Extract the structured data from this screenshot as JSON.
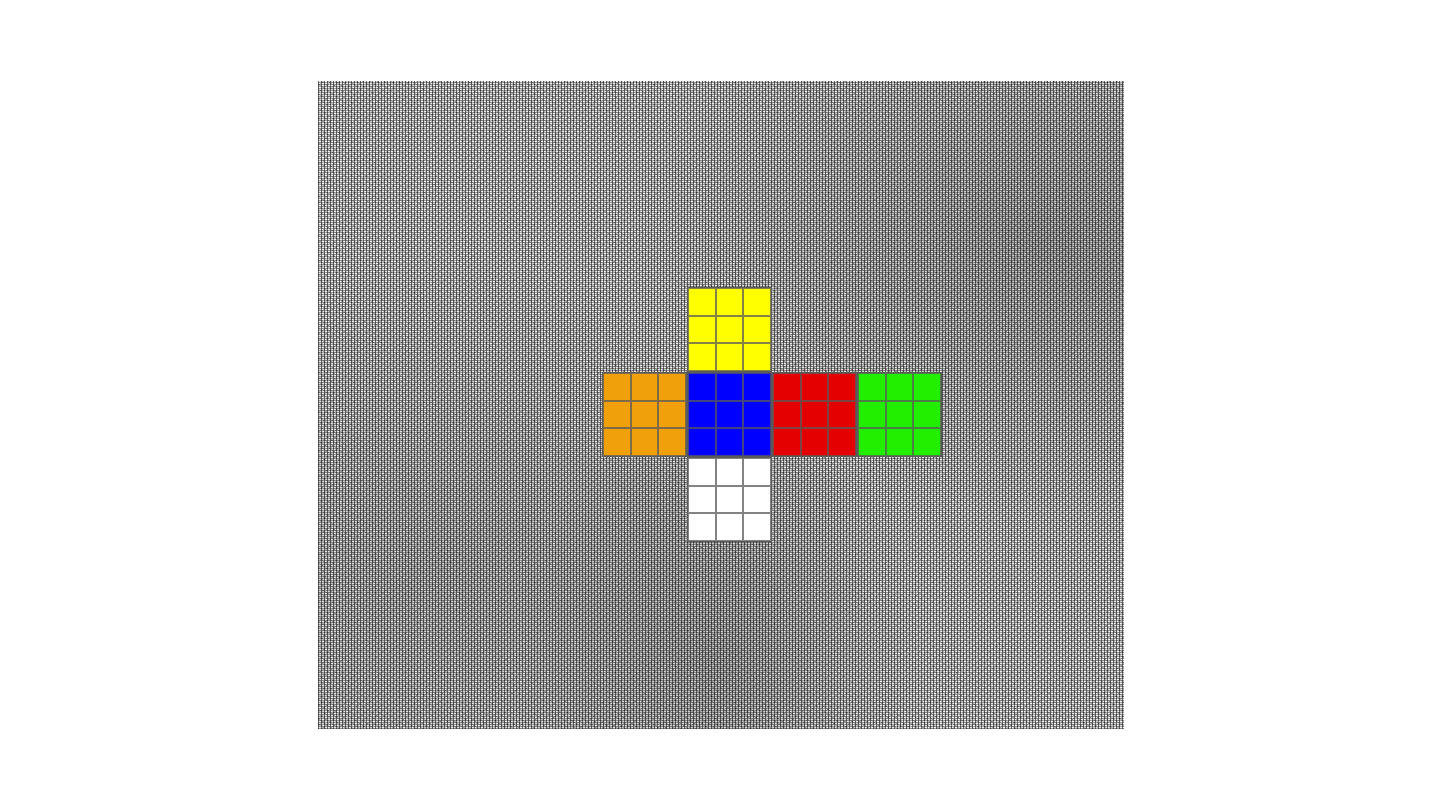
{
  "colors": {
    "yellow": "#ffff00",
    "orange": "#f0a00a",
    "blue": "#0000ff",
    "red": "#e40000",
    "green": "#22ee00",
    "white": "#ffffff"
  },
  "faces": [
    {
      "id": "up",
      "color": "yellow",
      "stickers": [
        "yellow",
        "yellow",
        "yellow",
        "yellow",
        "yellow",
        "yellow",
        "yellow",
        "yellow",
        "yellow"
      ]
    },
    {
      "id": "left",
      "color": "orange",
      "stickers": [
        "orange",
        "orange",
        "orange",
        "orange",
        "orange",
        "orange",
        "orange",
        "orange",
        "orange"
      ]
    },
    {
      "id": "front",
      "color": "blue",
      "stickers": [
        "blue",
        "blue",
        "blue",
        "blue",
        "blue",
        "blue",
        "blue",
        "blue",
        "blue"
      ]
    },
    {
      "id": "right",
      "color": "red",
      "stickers": [
        "red",
        "red",
        "red",
        "red",
        "red",
        "red",
        "red",
        "red",
        "red"
      ]
    },
    {
      "id": "back",
      "color": "green",
      "stickers": [
        "green",
        "green",
        "green",
        "green",
        "green",
        "green",
        "green",
        "green",
        "green"
      ]
    },
    {
      "id": "down",
      "color": "white",
      "stickers": [
        "white",
        "white",
        "white",
        "white",
        "white",
        "white",
        "white",
        "white",
        "white"
      ]
    }
  ]
}
